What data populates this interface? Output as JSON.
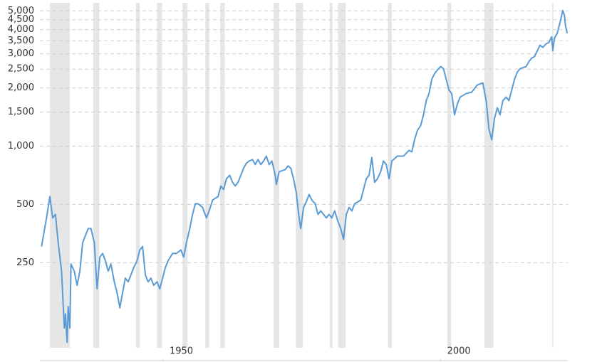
{
  "chart_data": {
    "type": "line",
    "log_scale": true,
    "grid": true,
    "band_color": "#e6e6e6",
    "recessions": [
      [
        1929.6,
        1933.2
      ],
      [
        1937.4,
        1938.5
      ],
      [
        1945.1,
        1945.8
      ],
      [
        1948.9,
        1949.8
      ],
      [
        1953.5,
        1954.4
      ],
      [
        1957.6,
        1958.3
      ],
      [
        1960.3,
        1961.1
      ],
      [
        1969.9,
        1970.9
      ],
      [
        1973.9,
        1975.2
      ],
      [
        1980.0,
        1980.5
      ],
      [
        1981.5,
        1982.9
      ],
      [
        1990.5,
        1991.2
      ],
      [
        2001.2,
        2001.9
      ],
      [
        2007.9,
        2009.5
      ],
      [
        2020.1,
        2020.3
      ]
    ],
    "xlim": [
      1927.8,
      2022.9
    ],
    "xticks": [
      1950,
      2000
    ],
    "ylim": [
      78,
      5500
    ],
    "yticks": [
      250,
      500,
      {
        "value": 1000,
        "label": "1,000"
      },
      {
        "value": 1500,
        "label": "1,500"
      },
      {
        "value": 2000,
        "label": "2,000"
      },
      {
        "value": 2500,
        "label": "2,500"
      },
      {
        "value": 3000,
        "label": "3,000"
      },
      {
        "value": 3500,
        "label": "3,500"
      },
      {
        "value": 4000,
        "label": "4,000"
      },
      {
        "value": 4500,
        "label": "4,500"
      },
      {
        "value": 5000,
        "label": "5,000"
      }
    ],
    "x": [
      1928.1,
      1929.1,
      1929.6,
      1930.1,
      1930.6,
      1931.1,
      1931.7,
      1932.2,
      1932.4,
      1932.7,
      1932.9,
      1933.2,
      1933.4,
      1934.0,
      1934.5,
      1935.0,
      1935.5,
      1936.0,
      1936.5,
      1937.0,
      1937.6,
      1938.1,
      1938.6,
      1939.1,
      1939.6,
      1940.1,
      1940.6,
      1941.2,
      1941.7,
      1942.2,
      1942.7,
      1943.2,
      1943.7,
      1944.2,
      1944.7,
      1945.3,
      1945.8,
      1946.3,
      1946.8,
      1947.3,
      1947.8,
      1948.3,
      1948.9,
      1949.4,
      1949.9,
      1950.4,
      1950.9,
      1951.7,
      1952.4,
      1953.2,
      1953.7,
      1954.2,
      1954.8,
      1955.3,
      1955.8,
      1956.3,
      1957.1,
      1957.8,
      1958.3,
      1958.9,
      1959.9,
      1960.4,
      1960.9,
      1961.4,
      1962.0,
      1962.5,
      1963.0,
      1963.5,
      1964.0,
      1964.5,
      1965.0,
      1965.5,
      1966.1,
      1966.6,
      1967.1,
      1967.6,
      1968.1,
      1968.6,
      1969.1,
      1969.6,
      1970.2,
      1970.4,
      1970.9,
      1972.0,
      1972.5,
      1973.0,
      1973.5,
      1974.0,
      1974.5,
      1974.8,
      1975.3,
      1975.8,
      1976.3,
      1976.8,
      1977.4,
      1977.9,
      1978.4,
      1979.4,
      1979.9,
      1980.4,
      1980.9,
      1981.5,
      1982.0,
      1982.5,
      1983.0,
      1983.5,
      1984.0,
      1984.5,
      1985.6,
      1986.1,
      1986.6,
      1987.1,
      1987.6,
      1988.1,
      1988.6,
      1989.2,
      1989.7,
      1990.2,
      1990.7,
      1991.2,
      1992.2,
      1993.3,
      1994.3,
      1994.8,
      1995.3,
      1995.8,
      1996.4,
      1996.9,
      1997.4,
      1997.9,
      1998.4,
      1998.9,
      1999.4,
      2000.0,
      2000.5,
      2001.0,
      2001.5,
      2002.0,
      2002.5,
      2003.0,
      2003.5,
      2004.6,
      2005.6,
      2006.6,
      2007.6,
      2008.2,
      2008.7,
      2009.2,
      2009.7,
      2010.2,
      2010.7,
      2011.2,
      2011.8,
      2012.3,
      2012.8,
      2013.3,
      2013.8,
      2014.3,
      2015.4,
      2015.9,
      2016.4,
      2016.9,
      2017.4,
      2017.9,
      2018.4,
      2019.0,
      2019.5,
      2020.0,
      2020.2,
      2020.5,
      2021.0,
      2021.5,
      2021.8,
      2022.0,
      2022.3,
      2022.5,
      2022.8
    ],
    "series": [
      {
        "color": "#5b9bd5",
        "values": [
          303,
          444,
          549,
          426,
          444,
          317,
          226,
          115,
          136,
          97,
          148,
          115,
          246,
          226,
          191,
          226,
          317,
          345,
          375,
          375,
          317,
          183,
          267,
          279,
          256,
          226,
          246,
          199,
          175,
          146,
          175,
          208,
          199,
          216,
          236,
          256,
          291,
          303,
          216,
          199,
          208,
          191,
          199,
          183,
          208,
          236,
          256,
          279,
          279,
          291,
          267,
          317,
          375,
          444,
          504,
          504,
          483,
          426,
          463,
          526,
          549,
          623,
          597,
          678,
          707,
          650,
          623,
          650,
          707,
          769,
          816,
          838,
          852,
          803,
          852,
          803,
          838,
          888,
          803,
          838,
          707,
          634,
          738,
          757,
          790,
          769,
          678,
          572,
          426,
          375,
          483,
          517,
          563,
          526,
          504,
          444,
          463,
          426,
          444,
          426,
          463,
          408,
          375,
          330,
          444,
          483,
          463,
          504,
          526,
          597,
          678,
          707,
          873,
          650,
          678,
          738,
          838,
          803,
          678,
          838,
          888,
          888,
          951,
          934,
          1079,
          1204,
          1278,
          1451,
          1718,
          1869,
          2213,
          2369,
          2471,
          2578,
          2513,
          2213,
          1949,
          1869,
          1451,
          1647,
          1791,
          1869,
          1901,
          2069,
          2121,
          1718,
          1225,
          1079,
          1391,
          1579,
          1451,
          1718,
          1791,
          1718,
          1949,
          2213,
          2409,
          2513,
          2578,
          2734,
          2852,
          2902,
          3104,
          3322,
          3238,
          3378,
          3435,
          3676,
          3104,
          3615,
          3835,
          4353,
          4737,
          5025,
          4737,
          4172,
          3835
        ]
      }
    ]
  }
}
